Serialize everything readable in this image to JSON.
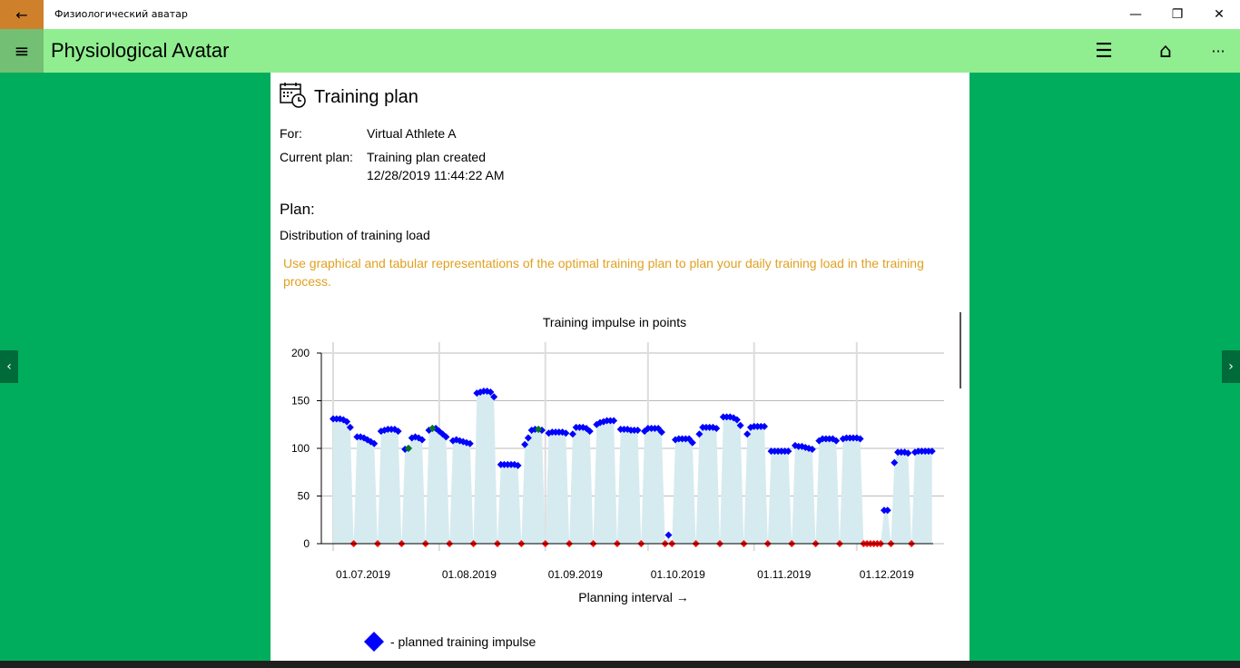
{
  "window": {
    "title": "Физиологический аватар",
    "back_icon": "←",
    "minimize": "—",
    "restore": "❐",
    "close": "✕"
  },
  "appbar": {
    "title": "Physiological Avatar",
    "menu_icon": "≡",
    "list_icon": "☰",
    "home_icon": "⌂",
    "more_icon": "···"
  },
  "page": {
    "heading": "Training plan",
    "for_label": "For:",
    "for_value": "Virtual Athlete A",
    "plan_label": "Current plan:",
    "plan_value": "Training plan created",
    "plan_date": "12/28/2019 11:44:22 AM",
    "plan_heading": "Plan:",
    "distribution": "Distribution of training load",
    "hint": "Use graphical and tabular representations of the optimal training plan to plan your daily training load in the training process.",
    "hint_color": "#e0a020",
    "legend_planned": "- planned training impulse"
  },
  "chart_data": {
    "type": "scatter",
    "title": "Training impulse in points",
    "xlabel": "Planning interval →",
    "ylabel": "",
    "ylim": [
      0,
      200
    ],
    "yticks": [
      0,
      50,
      100,
      150,
      200
    ],
    "start_date": "01.07.2019",
    "x_ticks": [
      {
        "label": "01.07.2019",
        "day": 0
      },
      {
        "label": "01.08.2019",
        "day": 31
      },
      {
        "label": "01.09.2019",
        "day": 62
      },
      {
        "label": "01.10.2019",
        "day": 92
      },
      {
        "label": "01.11.2019",
        "day": 123
      },
      {
        "label": "01.12.2019",
        "day": 153
      }
    ],
    "colors": {
      "planned": "#0000ff",
      "rest": "#ff0000",
      "actual": "#007a1f",
      "area": "#d6ebf0"
    },
    "planned_daily": [
      131,
      131,
      131,
      130,
      128,
      122,
      0,
      112,
      112,
      111,
      109,
      107,
      105,
      0,
      118,
      119,
      120,
      120,
      120,
      118,
      0,
      99,
      100,
      111,
      112,
      111,
      109,
      0,
      119,
      121,
      121,
      118,
      115,
      112,
      0,
      108,
      109,
      108,
      107,
      106,
      105,
      0,
      158,
      159,
      160,
      160,
      159,
      154,
      0,
      83,
      83,
      83,
      83,
      83,
      82,
      0,
      104,
      111,
      119,
      120,
      120,
      119,
      0,
      116,
      117,
      117,
      117,
      117,
      116,
      0,
      115,
      122,
      122,
      122,
      121,
      118,
      0,
      125,
      127,
      128,
      129,
      129,
      129,
      0,
      120,
      120,
      120,
      119,
      119,
      119,
      0,
      118,
      121,
      121,
      121,
      121,
      117,
      0,
      9,
      0,
      109,
      110,
      110,
      110,
      110,
      106,
      0,
      115,
      122,
      122,
      122,
      122,
      121,
      0,
      133,
      133,
      133,
      132,
      130,
      124,
      0,
      115,
      122,
      123,
      123,
      123,
      123,
      0,
      97,
      97,
      97,
      97,
      97,
      97,
      0,
      103,
      102,
      102,
      101,
      100,
      99,
      0,
      108,
      110,
      110,
      110,
      110,
      108,
      0,
      110,
      111,
      111,
      111,
      111,
      110,
      0,
      0,
      0,
      0,
      0,
      0,
      35,
      35,
      0,
      85,
      96,
      96,
      96,
      95,
      0,
      96,
      97,
      97,
      97,
      97,
      97
    ],
    "actual_points": [
      {
        "day": 22,
        "value": 100
      },
      {
        "day": 29,
        "value": 121
      },
      {
        "day": 60,
        "value": 120
      }
    ],
    "legend": [
      "- planned training impulse"
    ]
  }
}
